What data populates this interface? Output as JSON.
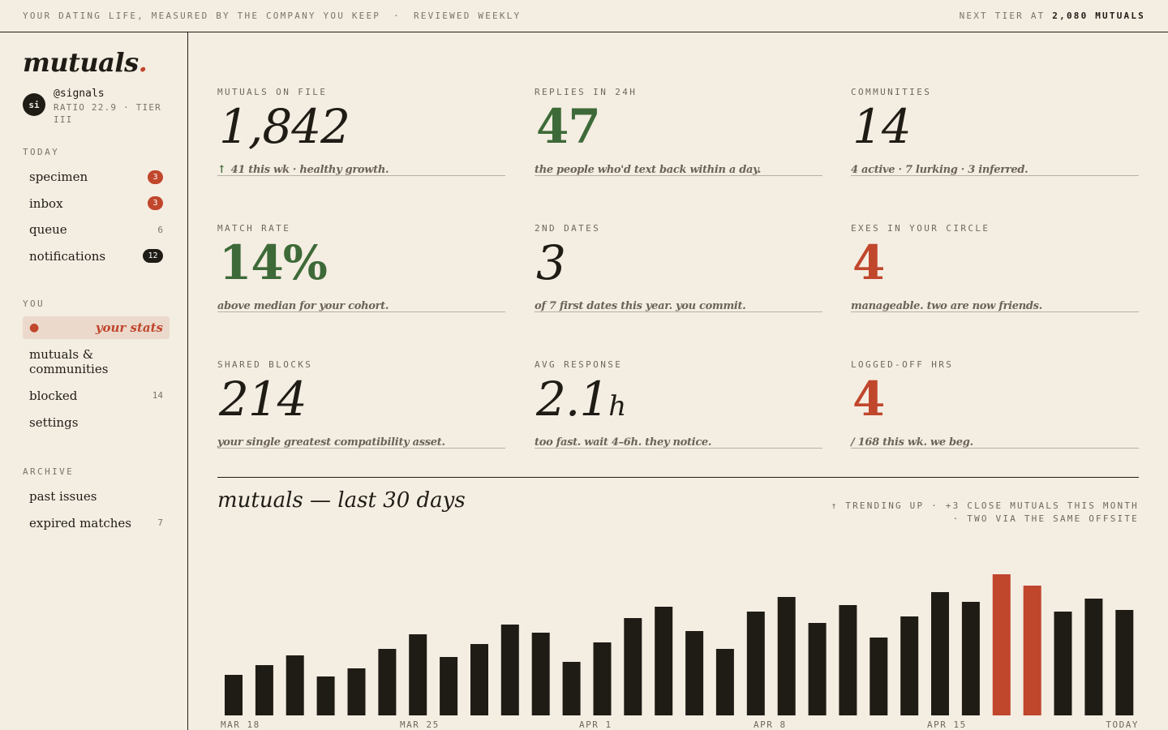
{
  "topbar": {
    "tagline": "YOUR DATING LIFE, MEASURED BY THE COMPANY YOU KEEP",
    "separator": "·",
    "cadence": "REVIEWED WEEKLY",
    "next_tier_prefix": "NEXT TIER AT",
    "next_tier_value": "2,080 MUTUALS"
  },
  "sidebar": {
    "logo_text": "mutuals",
    "logo_dot": ".",
    "user": {
      "avatar_initials": "si",
      "handle": "@signals",
      "ratio_line": "RATIO 22.9 · TIER III"
    },
    "sections": [
      {
        "label": "TODAY",
        "items": [
          {
            "label": "specimen",
            "badge": "3",
            "badge_style": "red"
          },
          {
            "label": "inbox",
            "badge": "3",
            "badge_style": "red"
          },
          {
            "label": "queue",
            "count": "6"
          },
          {
            "label": "notifications",
            "badge": "12",
            "badge_style": "dark"
          }
        ]
      },
      {
        "label": "YOU",
        "items": [
          {
            "label": "your stats",
            "active": true,
            "bullet": "●"
          },
          {
            "label": "mutuals & communities"
          },
          {
            "label": "blocked",
            "count": "14"
          },
          {
            "label": "settings"
          }
        ]
      },
      {
        "label": "ARCHIVE",
        "items": [
          {
            "label": "past issues"
          },
          {
            "label": "expired matches",
            "count": "7"
          }
        ]
      }
    ]
  },
  "stats": [
    {
      "label": "MUTUALS ON FILE",
      "value": "1,842",
      "style": "italic",
      "note_prefix": "↑",
      "note": "41 this wk · healthy growth."
    },
    {
      "label": "REPLIES IN 24H",
      "value": "47",
      "style": "green",
      "note": "the people who'd text back within a day."
    },
    {
      "label": "COMMUNITIES",
      "value": "14",
      "style": "italic",
      "note": "4 active · 7 lurking · 3 inferred."
    },
    {
      "label": "MATCH RATE",
      "value": "14%",
      "style": "green",
      "note": "above median for your cohort."
    },
    {
      "label": "2ND DATES",
      "value": "3",
      "style": "italic",
      "note": "of 7 first dates this year. you commit."
    },
    {
      "label": "EXES IN YOUR CIRCLE",
      "value": "4",
      "style": "red",
      "note": "manageable. two are now friends."
    },
    {
      "label": "SHARED BLOCKS",
      "value": "214",
      "style": "italic",
      "note": "your single greatest compatibility asset."
    },
    {
      "label": "AVG RESPONSE",
      "value": "2.1",
      "unit": "h",
      "style": "italic",
      "note": "too fast. wait 4–6h. they notice."
    },
    {
      "label": "LOGGED-OFF HRS",
      "value": "4",
      "style": "red",
      "note": "/ 168 this wk. we beg."
    }
  ],
  "chart_section": {
    "title": "mutuals — last 30 days",
    "meta_line1": "↑ TRENDING UP · +3 CLOSE MUTUALS THIS MONTH",
    "meta_line2": "· TWO VIA THE SAME OFFSITE"
  },
  "colors": {
    "ink": "#1f1c16",
    "accent_red": "#c0462c",
    "accent_green": "#3d6a38",
    "paper": "#f4ede2"
  },
  "chart_data": {
    "type": "bar",
    "title": "mutuals — last 30 days",
    "tick_labels": [
      "MAR 18",
      "MAR 25",
      "APR 1",
      "APR 8",
      "APR 15",
      "TODAY"
    ],
    "values": [
      50,
      62,
      74,
      48,
      58,
      82,
      100,
      72,
      88,
      112,
      102,
      66,
      90,
      120,
      134,
      104,
      82,
      128,
      146,
      114,
      136,
      96,
      122,
      152,
      140,
      174,
      160,
      128,
      144,
      130
    ],
    "highlighted_indices": [
      25,
      26
    ],
    "ylim": [
      0,
      180
    ],
    "grid": false,
    "legend": "none"
  }
}
